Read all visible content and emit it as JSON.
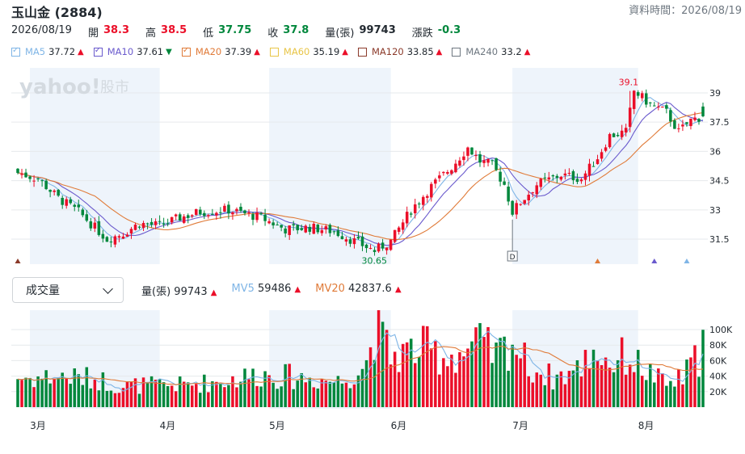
{
  "header": {
    "title": "玉山金 (2884)",
    "timestamp": "資料時間：2026/08/19"
  },
  "quote": {
    "date": "2026/08/19",
    "open_label": "開",
    "open": "38.3",
    "high_label": "高",
    "high": "38.5",
    "low_label": "低",
    "low": "37.75",
    "close_label": "收",
    "close": "37.8",
    "volume_label": "量(張)",
    "volume": "99743",
    "change_label": "漲跌",
    "change": "-0.3"
  },
  "ma_legend": [
    {
      "name": "MA5",
      "value": "37.72",
      "trend": "up",
      "color": "#7fb5e6"
    },
    {
      "name": "MA10",
      "value": "37.61",
      "trend": "down",
      "color": "#6a5acd"
    },
    {
      "name": "MA20",
      "value": "37.39",
      "trend": "up",
      "color": "#e07b39"
    },
    {
      "name": "MA60",
      "value": "35.19",
      "trend": "up",
      "color": "#e8c547"
    },
    {
      "name": "MA120",
      "value": "33.85",
      "trend": "up",
      "color": "#8b3a2a"
    },
    {
      "name": "MA240",
      "value": "33.2",
      "trend": "up",
      "color": "#6e7780"
    }
  ],
  "watermark": {
    "brand": "yahoo!",
    "sub": "股市"
  },
  "volume_selector": {
    "label": "成交量"
  },
  "volume_legend": {
    "vol_label": "量(張)",
    "vol": "99743",
    "mv5_label": "MV5",
    "mv5": "59486",
    "mv20_label": "MV20",
    "mv20": "42837.6"
  },
  "colors": {
    "up": "#eb0f29",
    "down": "#00873c",
    "band": "#eef4fb"
  },
  "chart_data": {
    "type": "candlestick",
    "price_axis": {
      "ticks": [
        31.5,
        33,
        34.5,
        36,
        37.5,
        39
      ],
      "labels": [
        "31.5",
        "33",
        "34.5",
        "36",
        "37.5",
        "39"
      ],
      "range": [
        30.3,
        40.2
      ]
    },
    "volume_axis": {
      "ticks": [
        20000,
        40000,
        60000,
        80000,
        100000
      ],
      "labels": [
        "20K",
        "40K",
        "60K",
        "80K",
        "100K"
      ],
      "range": [
        0,
        125000
      ]
    },
    "month_labels": [
      {
        "label": "3月",
        "index": 5
      },
      {
        "label": "4月",
        "index": 37
      },
      {
        "label": "5月",
        "index": 64
      },
      {
        "label": "6月",
        "index": 94
      },
      {
        "label": "7月",
        "index": 124
      },
      {
        "label": "8月",
        "index": 155
      }
    ],
    "annotations": {
      "high": {
        "label": "39.1",
        "value": 39.1,
        "index": 151
      },
      "low": {
        "label": "30.65",
        "value": 30.65,
        "index": 88
      },
      "marker": {
        "label": "D",
        "index": 122
      }
    },
    "event_markers": [
      {
        "index": 0,
        "color": "#8b3a2a"
      },
      {
        "index": 143,
        "color": "#e07b39"
      },
      {
        "index": 157,
        "color": "#6a5acd"
      },
      {
        "index": 165,
        "color": "#7fb5e6"
      }
    ],
    "price_shape": [
      [
        0,
        34.9
      ],
      [
        5,
        34.6
      ],
      [
        10,
        33.6
      ],
      [
        15,
        32.9
      ],
      [
        22,
        31.5
      ],
      [
        26,
        31.8
      ],
      [
        30,
        32.3
      ],
      [
        35,
        32.2
      ],
      [
        40,
        32.6
      ],
      [
        45,
        32.9
      ],
      [
        52,
        33.0
      ],
      [
        60,
        32.6
      ],
      [
        66,
        32.0
      ],
      [
        72,
        32.1
      ],
      [
        78,
        31.9
      ],
      [
        82,
        31.5
      ],
      [
        88,
        30.9
      ],
      [
        92,
        31.4
      ],
      [
        97,
        33.0
      ],
      [
        102,
        34.2
      ],
      [
        107,
        35.2
      ],
      [
        111,
        36.2
      ],
      [
        114,
        35.5
      ],
      [
        117,
        35.3
      ],
      [
        120,
        34.3
      ],
      [
        122,
        32.9
      ],
      [
        124,
        33.4
      ],
      [
        128,
        34.3
      ],
      [
        134,
        34.8
      ],
      [
        139,
        34.6
      ],
      [
        143,
        35.7
      ],
      [
        146,
        36.8
      ],
      [
        150,
        37.0
      ],
      [
        152,
        39.1
      ],
      [
        156,
        38.4
      ],
      [
        160,
        38.0
      ],
      [
        163,
        37.0
      ],
      [
        166,
        37.6
      ],
      [
        169,
        37.8
      ]
    ],
    "volume_shape": [
      [
        0,
        40000
      ],
      [
        5,
        40000
      ],
      [
        10,
        42000
      ],
      [
        20,
        38000
      ],
      [
        25,
        28000
      ],
      [
        30,
        30000
      ],
      [
        40,
        30000
      ],
      [
        50,
        35000
      ],
      [
        60,
        45000
      ],
      [
        70,
        40000
      ],
      [
        80,
        35000
      ],
      [
        86,
        60000
      ],
      [
        88,
        110000
      ],
      [
        92,
        70000
      ],
      [
        96,
        75000
      ],
      [
        100,
        80000
      ],
      [
        105,
        70000
      ],
      [
        110,
        75000
      ],
      [
        114,
        85000
      ],
      [
        118,
        70000
      ],
      [
        122,
        90000
      ],
      [
        126,
        55000
      ],
      [
        132,
        40000
      ],
      [
        138,
        50000
      ],
      [
        142,
        80000
      ],
      [
        146,
        60000
      ],
      [
        150,
        70000
      ],
      [
        155,
        50000
      ],
      [
        160,
        30000
      ],
      [
        164,
        40000
      ],
      [
        168,
        70000
      ],
      [
        169,
        99743
      ]
    ]
  }
}
